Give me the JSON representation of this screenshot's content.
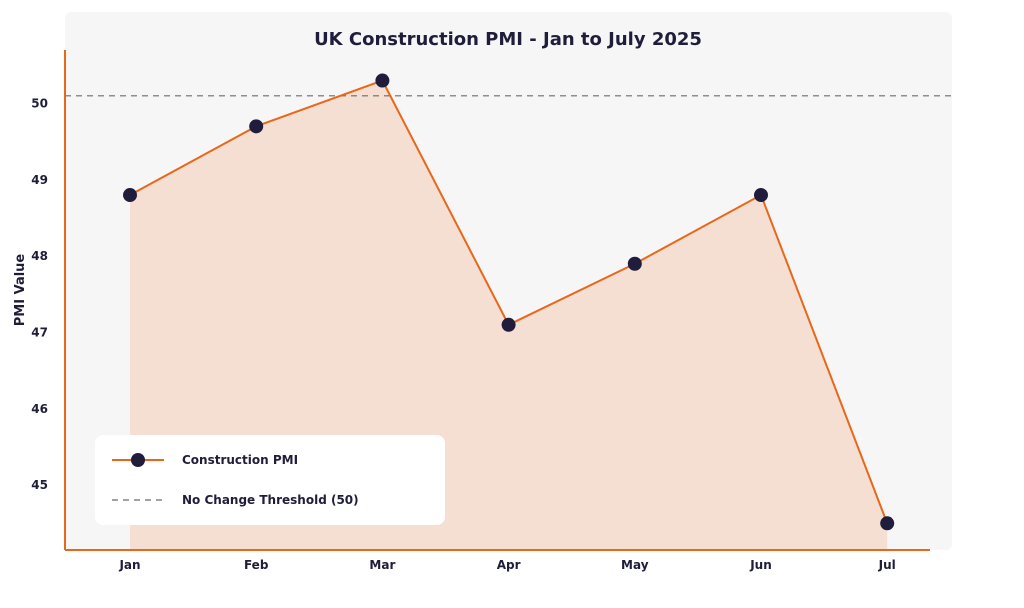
{
  "chart_data": {
    "type": "area",
    "title": "UK Construction PMI - Jan to July 2025",
    "xlabel": "",
    "ylabel": "PMI Value",
    "categories": [
      "Jan",
      "Feb",
      "Mar",
      "Apr",
      "May",
      "Jun",
      "Jul"
    ],
    "series": [
      {
        "name": "Construction PMI",
        "values": [
          48.8,
          49.7,
          50.3,
          47.1,
          47.9,
          48.8,
          44.5
        ]
      }
    ],
    "threshold": {
      "name": "No Change Threshold (50)",
      "value": 50.1
    },
    "yticks": [
      45,
      46,
      47,
      48,
      49,
      50
    ],
    "ylim": [
      44.15,
      50.7
    ],
    "grid": false,
    "legend_position": "bottom-left",
    "colors": {
      "line": "#e8671a",
      "fill": "#f4dfd2",
      "marker": "#201c3c",
      "threshold": "#6b6b6b",
      "plot_background": "#f6f6f6",
      "axis": "#e8671a"
    }
  }
}
